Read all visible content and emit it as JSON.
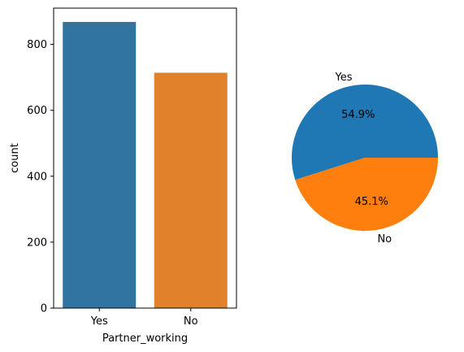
{
  "chart_data": [
    {
      "type": "bar",
      "categories": [
        "Yes",
        "No"
      ],
      "values": [
        868,
        714
      ],
      "xlabel": "Partner_working",
      "ylabel": "count",
      "ylim": [
        0,
        910
      ],
      "yticks": [
        0,
        200,
        400,
        600,
        800
      ],
      "colors": [
        "#3274a1",
        "#e1812c"
      ],
      "grid": false
    },
    {
      "type": "pie",
      "labels": [
        "Yes",
        "No"
      ],
      "values": [
        54.9,
        45.1
      ],
      "pct_labels": [
        "54.9%",
        "45.1%"
      ],
      "colors": [
        "#1f77b4",
        "#ff7f0e"
      ]
    }
  ]
}
